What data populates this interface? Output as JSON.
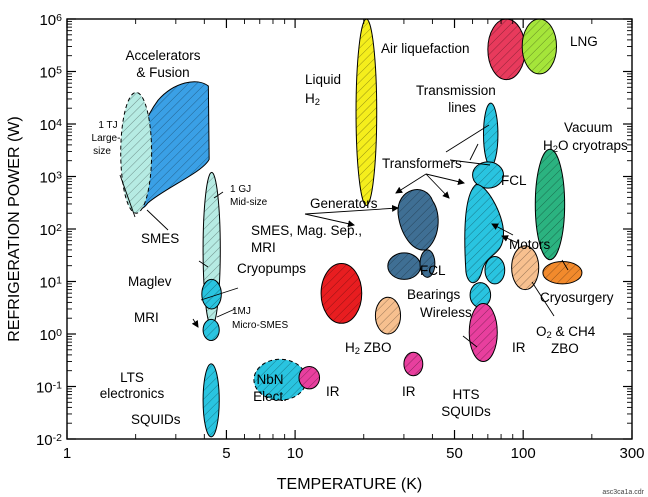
{
  "chart_data": {
    "type": "scatter",
    "xlabel": "TEMPERATURE (K)",
    "ylabel": "REFRIGERATION POWER (W)",
    "x_scale": "log",
    "y_scale": "log",
    "xlim": [
      1,
      300
    ],
    "ylim": [
      0.01,
      1000000
    ],
    "x_ticks": [
      {
        "value": 1,
        "label": "1"
      },
      {
        "value": 5,
        "label": "5"
      },
      {
        "value": 10,
        "label": "10"
      },
      {
        "value": 50,
        "label": "50"
      },
      {
        "value": 100,
        "label": "100"
      },
      {
        "value": 300,
        "label": "300"
      }
    ],
    "y_ticks": [
      {
        "value": 0.01,
        "base": "10",
        "exp": "-2"
      },
      {
        "value": 0.1,
        "base": "10",
        "exp": "-1"
      },
      {
        "value": 1,
        "base": "10",
        "exp": "0"
      },
      {
        "value": 10,
        "base": "10",
        "exp": "1"
      },
      {
        "value": 100,
        "base": "10",
        "exp": "2"
      },
      {
        "value": 1000,
        "base": "10",
        "exp": "3"
      },
      {
        "value": 10000,
        "base": "10",
        "exp": "4"
      },
      {
        "value": 100000,
        "base": "10",
        "exp": "5"
      },
      {
        "value": 1000000,
        "base": "10",
        "exp": "6"
      }
    ],
    "grid": false,
    "regions": [
      {
        "id": "accelerators",
        "shape": "blob",
        "fill": "#3aa0e6",
        "x_range": [
          1.9,
          4.2
        ],
        "y_range": [
          250,
          70000
        ]
      },
      {
        "id": "smes-large",
        "shape": "ellipse",
        "fill": "#b6ebe3",
        "dashed": true,
        "x": 2.0,
        "y": 1800,
        "x_span": [
          1.72,
          2.35
        ],
        "y_span": [
          200,
          40000
        ]
      },
      {
        "id": "smes-mid",
        "shape": "ellipse",
        "fill": "#b6ebe3",
        "x": 4.3,
        "y": 40,
        "x_span": [
          3.95,
          4.7
        ],
        "y_span": [
          1.4,
          1200
        ]
      },
      {
        "id": "maglev",
        "shape": "ellipse",
        "fill": "#29c4e0",
        "x": 4.3,
        "y": 6,
        "x_span": [
          3.9,
          4.75
        ],
        "y_span": [
          3,
          11
        ]
      },
      {
        "id": "mri-small",
        "shape": "ellipse",
        "fill": "#29c4e0",
        "x": 4.3,
        "y": 1.2,
        "x_span": [
          3.95,
          4.65
        ],
        "y_span": [
          0.75,
          1.9
        ]
      },
      {
        "id": "lts-electronics",
        "shape": "ellipse",
        "fill": "#29c4e0",
        "x": 4.3,
        "y": 0.12,
        "x_span": [
          3.95,
          4.65
        ],
        "y_span": [
          0.011,
          0.27
        ]
      },
      {
        "id": "nbn-electronics",
        "shape": "ellipse",
        "fill": "#29c4e0",
        "dashed": true,
        "x": 8.6,
        "y": 0.13,
        "x_span": [
          6.6,
          11.2
        ],
        "y_span": [
          0.055,
          0.33
        ]
      },
      {
        "id": "ir-1",
        "shape": "circle",
        "fill": "#e83f9e",
        "x": 11.5,
        "y": 0.15,
        "x_span": [
          10.4,
          12.8
        ],
        "y_span": [
          0.09,
          0.24
        ]
      },
      {
        "id": "liquid-h2",
        "shape": "ellipse",
        "fill": "#f5ee1c",
        "x": 20.5,
        "y": 50000,
        "x_span": [
          18.5,
          22.8
        ],
        "y_span": [
          280,
          1000000
        ]
      },
      {
        "id": "cryopumps",
        "shape": "ellipse",
        "fill": "#e81d20",
        "x": 16,
        "y": 6,
        "x_span": [
          13,
          19.6
        ],
        "y_span": [
          1.6,
          22
        ]
      },
      {
        "id": "h2-zbo",
        "shape": "ellipse",
        "fill": "#f7c08f",
        "x": 25.5,
        "y": 2.2,
        "x_span": [
          22.5,
          29
        ],
        "y_span": [
          1.0,
          5
        ]
      },
      {
        "id": "ir-2",
        "shape": "circle",
        "fill": "#e83f9e",
        "x": 33,
        "y": 0.27,
        "x_span": [
          30,
          36.3
        ],
        "y_span": [
          0.16,
          0.45
        ]
      },
      {
        "id": "generators",
        "shape": "blob",
        "fill": "#3f6f94",
        "x_range": [
          27,
          43
        ],
        "y_range": [
          40,
          700
        ]
      },
      {
        "id": "mag-sep",
        "shape": "ellipse",
        "fill": "#3f6f94",
        "x": 30,
        "y": 20,
        "x_span": [
          25.5,
          35.5
        ],
        "y_span": [
          11,
          35
        ]
      },
      {
        "id": "fcl-dark",
        "shape": "ellipse",
        "fill": "#3f6f94",
        "x": 38,
        "y": 22,
        "x_span": [
          35.3,
          41
        ],
        "y_span": [
          12,
          40
        ]
      },
      {
        "id": "transmission-lines",
        "shape": "ellipse",
        "fill": "#29c4e0",
        "x": 72,
        "y": 7000,
        "x_span": [
          67,
          77.5
        ],
        "y_span": [
          1600,
          25000
        ]
      },
      {
        "id": "fcl-cyan",
        "shape": "ellipse",
        "fill": "#29c4e0",
        "x": 70,
        "y": 1100,
        "x_span": [
          60,
          82
        ],
        "y_span": [
          600,
          1900
        ]
      },
      {
        "id": "motors",
        "shape": "blob",
        "fill": "#29c4e0",
        "x_range": [
          55,
          82
        ],
        "y_range": [
          10,
          700
        ]
      },
      {
        "id": "bearings-1",
        "shape": "ellipse",
        "fill": "#29c4e0",
        "x": 75,
        "y": 17,
        "x_span": [
          68,
          83
        ],
        "y_span": [
          9,
          30
        ]
      },
      {
        "id": "bearings-2",
        "shape": "ellipse",
        "fill": "#29c4e0",
        "x": 65,
        "y": 5.5,
        "x_span": [
          58.5,
          72
        ],
        "y_span": [
          3.2,
          9.5
        ]
      },
      {
        "id": "hts-squids",
        "shape": "circle",
        "fill": "#e83f9e",
        "x": 67,
        "y": 1.1,
        "x_span": [
          58,
          77
        ],
        "y_span": [
          0.3,
          3.8
        ]
      },
      {
        "id": "o2-ch4-zbo",
        "shape": "ellipse",
        "fill": "#f7c08f",
        "x": 102,
        "y": 18,
        "x_span": [
          89,
          117
        ],
        "y_span": [
          7,
          48
        ]
      },
      {
        "id": "air-liquefaction",
        "shape": "ellipse",
        "fill": "#e83a5c",
        "x": 84,
        "y": 350000,
        "x_span": [
          70,
          102
        ],
        "y_span": [
          70000,
          1000000
        ]
      },
      {
        "id": "lng",
        "shape": "ellipse",
        "fill": "#a5e53a",
        "x": 117,
        "y": 400000,
        "x_span": [
          99,
          140
        ],
        "y_span": [
          90000,
          1000000
        ]
      },
      {
        "id": "vacuum-h2o",
        "shape": "ellipse",
        "fill": "#2bb380",
        "x": 130,
        "y": 300,
        "x_span": [
          113,
          152
        ],
        "y_span": [
          26,
          3300
        ]
      },
      {
        "id": "cryosurgery",
        "shape": "ellipse",
        "fill": "#f28a2c",
        "x": 148,
        "y": 15,
        "x_span": [
          122,
          181
        ],
        "y_span": [
          9,
          24
        ]
      }
    ],
    "annotations": [
      {
        "id": "accelerators",
        "lines": [
          "Accelerators",
          "& Fusion"
        ]
      },
      {
        "id": "smes-large",
        "lines": [
          "1 TJ",
          "Large-",
          "size"
        ]
      },
      {
        "id": "smes-mid",
        "lines": [
          "1 GJ",
          "Mid-size"
        ]
      },
      {
        "id": "smes",
        "lines": [
          "SMES"
        ]
      },
      {
        "id": "maglev",
        "lines": [
          "Maglev"
        ]
      },
      {
        "id": "mri-small",
        "lines": [
          "MRI"
        ]
      },
      {
        "id": "micro-smes",
        "lines": [
          "1MJ",
          "Micro-SMES"
        ]
      },
      {
        "id": "lts-electronics",
        "lines": [
          "LTS",
          "electronics"
        ]
      },
      {
        "id": "squids",
        "lines": [
          "SQUIDs"
        ]
      },
      {
        "id": "nbn-electronics",
        "lines": [
          "NbN",
          "Elect."
        ]
      },
      {
        "id": "ir-1",
        "lines": [
          "IR"
        ]
      },
      {
        "id": "liquid-h2",
        "lines": [
          "Liquid",
          "H2"
        ]
      },
      {
        "id": "cryopumps",
        "lines": [
          "Cryopumps"
        ]
      },
      {
        "id": "h2-zbo",
        "lines": [
          "H2 ZBO"
        ]
      },
      {
        "id": "ir-2",
        "lines": [
          "IR"
        ]
      },
      {
        "id": "generators",
        "lines": [
          "Generators"
        ]
      },
      {
        "id": "mag-sep",
        "lines": [
          "SMES, Mag. Sep.,",
          "MRI"
        ]
      },
      {
        "id": "fcl-dark",
        "lines": [
          "FCL"
        ]
      },
      {
        "id": "air-liquefaction",
        "lines": [
          "Air liquefaction"
        ]
      },
      {
        "id": "lng",
        "lines": [
          "LNG"
        ]
      },
      {
        "id": "transmission-lines",
        "lines": [
          "Transmission",
          "lines"
        ]
      },
      {
        "id": "vacuum-h2o",
        "lines": [
          "Vacuum",
          "H2O cryotraps"
        ]
      },
      {
        "id": "transformers",
        "lines": [
          "Transformers"
        ]
      },
      {
        "id": "fcl-cyan",
        "lines": [
          "FCL"
        ]
      },
      {
        "id": "motors",
        "lines": [
          "Motors"
        ]
      },
      {
        "id": "bearings",
        "lines": [
          "Bearings"
        ]
      },
      {
        "id": "wireless",
        "lines": [
          "Wireless"
        ]
      },
      {
        "id": "cryosurgery",
        "lines": [
          "Cryosurgery"
        ]
      },
      {
        "id": "o2-ch4-zbo",
        "lines": [
          "O2 & CH4",
          "ZBO"
        ]
      },
      {
        "id": "hts-squids",
        "lines": [
          "HTS",
          "SQUIDs"
        ]
      },
      {
        "id": "ir-3",
        "lines": [
          "IR"
        ]
      }
    ]
  },
  "footer": {
    "file_label": "asc3ca1a.cdr"
  }
}
